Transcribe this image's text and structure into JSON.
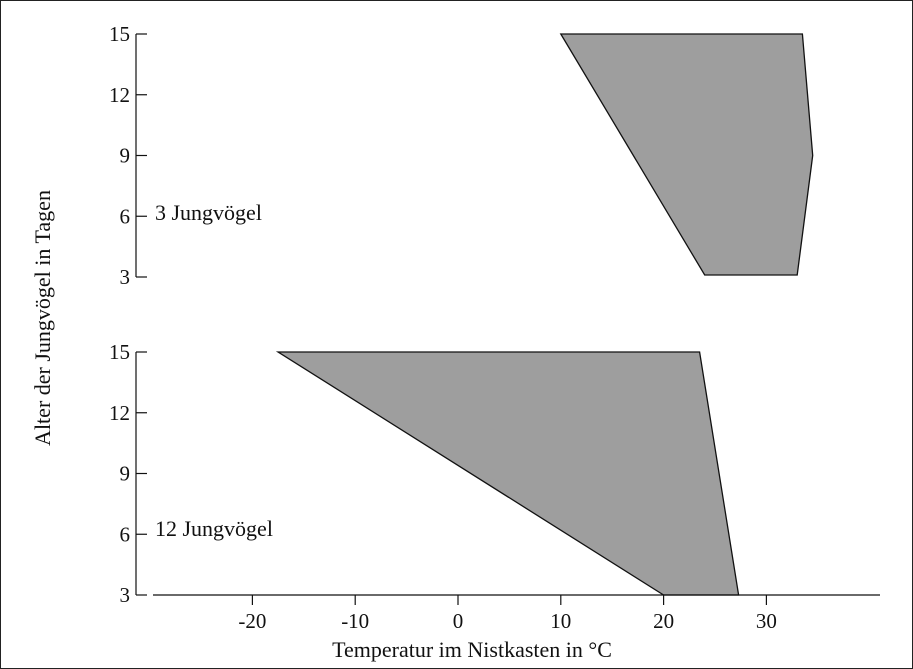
{
  "chart_data": {
    "type": "area",
    "xlabel": "Temperatur im Nistkasten in °C",
    "ylabel": "Alter der Jungvögel in Tagen",
    "x_ticks": [
      -20,
      -10,
      0,
      10,
      20,
      30
    ],
    "x_tick_labels": [
      "-20",
      "-10",
      "0",
      "10",
      "20",
      "30"
    ],
    "xlim": [
      -28,
      40
    ],
    "colors": {
      "fill": "#9e9e9e",
      "stroke": "#111111"
    },
    "panels": [
      {
        "label": "3 Jungvögel",
        "ylim": [
          3,
          15
        ],
        "y_ticks": [
          3,
          6,
          9,
          12,
          15
        ],
        "y_tick_labels": [
          "3",
          "6",
          "9",
          "12",
          "15"
        ],
        "polygon": [
          {
            "x": 10,
            "y": 15
          },
          {
            "x": 33.5,
            "y": 15
          },
          {
            "x": 34.5,
            "y": 9
          },
          {
            "x": 33,
            "y": 3.1
          },
          {
            "x": 24,
            "y": 3.1
          }
        ]
      },
      {
        "label": "12 Jungvögel",
        "ylim": [
          3,
          15
        ],
        "y_ticks": [
          3,
          6,
          9,
          12,
          15
        ],
        "y_tick_labels": [
          "3",
          "6",
          "9",
          "12",
          "15"
        ],
        "polygon": [
          {
            "x": -17.5,
            "y": 15
          },
          {
            "x": 23.5,
            "y": 15
          },
          {
            "x": 27.3,
            "y": 3
          },
          {
            "x": 20,
            "y": 3
          }
        ]
      }
    ]
  }
}
